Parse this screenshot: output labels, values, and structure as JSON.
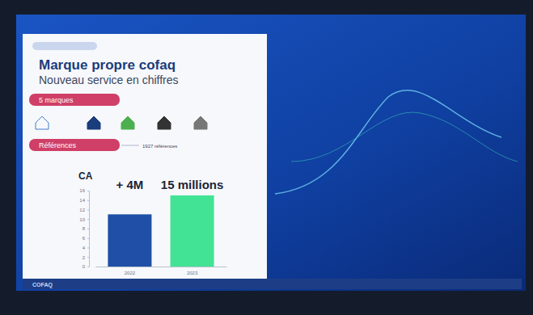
{
  "slide": {
    "title": "Marque propre cofaq",
    "subtitle": "Nouveau service en chiffres",
    "sections": [
      {
        "label": "5 marques"
      },
      {
        "label": "Références",
        "text": "1927 références"
      }
    ],
    "footer": "COFAQ"
  },
  "chart_data": {
    "type": "bar",
    "title": "CA",
    "categories": [
      "2022",
      "2023"
    ],
    "values": [
      11,
      15
    ],
    "colors": [
      "#1f4fa6",
      "#42e394"
    ],
    "annotations": [
      "+ 4M",
      "15 millions"
    ],
    "ylim": [
      0,
      16
    ],
    "yticks": [
      0,
      2,
      4,
      6,
      8,
      10,
      12,
      14,
      16
    ],
    "grid": false
  }
}
